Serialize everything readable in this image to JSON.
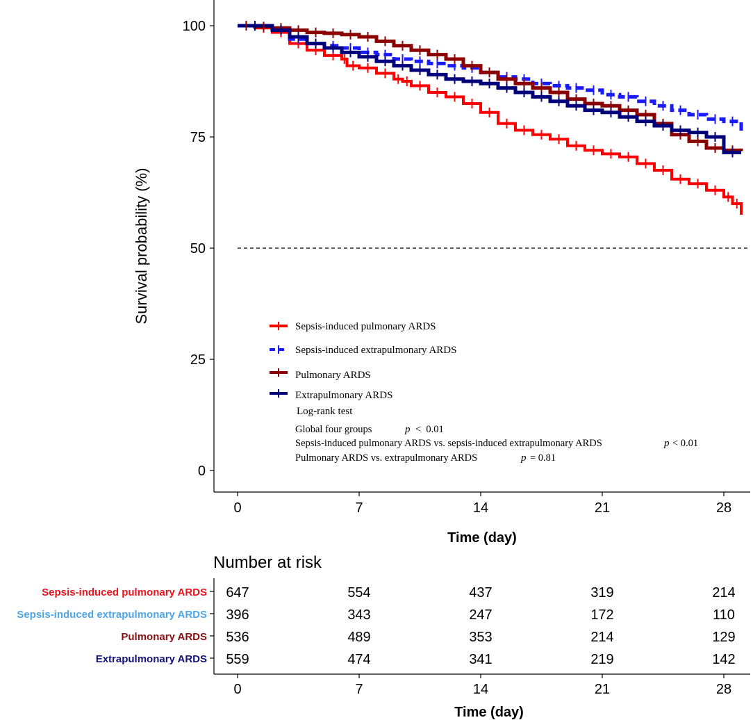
{
  "chart_data": {
    "type": "line",
    "subtype": "kaplan-meier",
    "title": "",
    "xlabel": "Time (day)",
    "ylabel": "Survival probability (%)",
    "xlim": [
      0,
      29
    ],
    "ylim": [
      0,
      100
    ],
    "x_ticks": [
      "0",
      "7",
      "14",
      "21",
      "28"
    ],
    "y_ticks": [
      "0",
      "25",
      "50",
      "75",
      "100"
    ],
    "reference_line": {
      "y": 50,
      "style": "dashed"
    },
    "series": [
      {
        "name": "Sepsis-induced pulmonary ARDS",
        "color": "#ff0000",
        "dash": "solid",
        "steps": [
          [
            0,
            100
          ],
          [
            1,
            99.5
          ],
          [
            2,
            98.5
          ],
          [
            3,
            96
          ],
          [
            4,
            94.5
          ],
          [
            5,
            93.3
          ],
          [
            6,
            92.5
          ],
          [
            6.3,
            91
          ],
          [
            7,
            90.5
          ],
          [
            8,
            89.3
          ],
          [
            9,
            88
          ],
          [
            9.5,
            87.5
          ],
          [
            10,
            86.5
          ],
          [
            11,
            85
          ],
          [
            12,
            84
          ],
          [
            13,
            82.5
          ],
          [
            14,
            80.5
          ],
          [
            15,
            78
          ],
          [
            16,
            76.5
          ],
          [
            17,
            75.5
          ],
          [
            18,
            74.5
          ],
          [
            19,
            73
          ],
          [
            20,
            72
          ],
          [
            21,
            71.2
          ],
          [
            22,
            70.5
          ],
          [
            23,
            69
          ],
          [
            24,
            67.5
          ],
          [
            25,
            65.5
          ],
          [
            26,
            64.5
          ],
          [
            27,
            63
          ],
          [
            28,
            61.5
          ],
          [
            28.5,
            60
          ],
          [
            29,
            57.5
          ]
        ]
      },
      {
        "name": "Sepsis-induced extrapulmonary ARDS",
        "color": "#1a1aff",
        "dash": "dashed",
        "steps": [
          [
            0,
            100
          ],
          [
            2,
            99
          ],
          [
            3,
            97
          ],
          [
            4,
            96
          ],
          [
            5,
            95.5
          ],
          [
            6,
            95
          ],
          [
            7,
            94
          ],
          [
            8,
            93.5
          ],
          [
            9,
            92.5
          ],
          [
            10,
            92
          ],
          [
            11,
            91.5
          ],
          [
            12,
            91
          ],
          [
            13,
            90.5
          ],
          [
            14,
            89.5
          ],
          [
            15,
            88.5
          ],
          [
            16,
            88
          ],
          [
            17,
            87
          ],
          [
            18,
            86.5
          ],
          [
            19,
            86
          ],
          [
            20,
            85.5
          ],
          [
            21,
            84.5
          ],
          [
            22,
            84
          ],
          [
            23,
            83
          ],
          [
            24,
            82
          ],
          [
            25,
            81
          ],
          [
            26,
            80
          ],
          [
            27,
            79
          ],
          [
            28,
            78.5
          ],
          [
            29,
            76
          ]
        ]
      },
      {
        "name": "Pulmonary ARDS",
        "color": "#8b0000",
        "dash": "solid",
        "steps": [
          [
            0,
            100
          ],
          [
            1,
            99.8
          ],
          [
            2,
            99.5
          ],
          [
            3,
            99
          ],
          [
            4,
            98.5
          ],
          [
            5,
            98.3
          ],
          [
            6,
            98
          ],
          [
            7,
            97.5
          ],
          [
            8,
            96.5
          ],
          [
            9,
            95.5
          ],
          [
            10,
            94.5
          ],
          [
            11,
            93.5
          ],
          [
            12,
            92.5
          ],
          [
            13,
            91
          ],
          [
            14,
            89.5
          ],
          [
            15,
            88
          ],
          [
            16,
            87
          ],
          [
            17,
            86
          ],
          [
            18,
            85
          ],
          [
            19,
            83.5
          ],
          [
            20,
            82.5
          ],
          [
            21,
            82
          ],
          [
            22,
            81
          ],
          [
            23,
            80
          ],
          [
            24,
            78
          ],
          [
            25,
            75.5
          ],
          [
            26,
            74
          ],
          [
            27,
            72.5
          ],
          [
            28,
            72
          ],
          [
            29,
            71.8
          ]
        ]
      },
      {
        "name": "Extrapulmonary ARDS",
        "color": "#00007a",
        "dash": "solid",
        "steps": [
          [
            0,
            100
          ],
          [
            2,
            99
          ],
          [
            3,
            97.5
          ],
          [
            4,
            96
          ],
          [
            5,
            95
          ],
          [
            6,
            94
          ],
          [
            7,
            93
          ],
          [
            8,
            92
          ],
          [
            9,
            91
          ],
          [
            10,
            90
          ],
          [
            11,
            89
          ],
          [
            12,
            88
          ],
          [
            13,
            87.5
          ],
          [
            14,
            87
          ],
          [
            15,
            86
          ],
          [
            16,
            85
          ],
          [
            17,
            84
          ],
          [
            18,
            83
          ],
          [
            19,
            82
          ],
          [
            20,
            81
          ],
          [
            21,
            80.5
          ],
          [
            22,
            79.5
          ],
          [
            23,
            78.5
          ],
          [
            24,
            77.5
          ],
          [
            25,
            76.5
          ],
          [
            26,
            76
          ],
          [
            27,
            75
          ],
          [
            28,
            71.5
          ],
          [
            29,
            71.5
          ]
        ]
      }
    ],
    "legend_position": "bottom-left",
    "annotations": {
      "test_title": "Log-rank test",
      "rows": [
        {
          "label": "Global four groups",
          "p": "p",
          "value": "<  0.01"
        },
        {
          "label": "Sepsis-induced pulmonary ARDS vs. sepsis-induced extrapulmonary ARDS",
          "p": "p",
          "value": "< 0.01"
        },
        {
          "label": "Pulmonary ARDS vs. extrapulmonary ARDS",
          "p": "p",
          "value": "= 0.81"
        }
      ]
    },
    "risk_table": {
      "title": "Number at risk",
      "xlabel": "Time (day)",
      "times": [
        "0",
        "7",
        "14",
        "21",
        "28"
      ],
      "rows": [
        {
          "label": "Sepsis-induced pulmonary ARDS",
          "color": "#e8141c",
          "values": [
            "647",
            "554",
            "437",
            "319",
            "214"
          ]
        },
        {
          "label": "Sepsis-induced extrapulmonary ARDS",
          "color": "#4da6e8",
          "values": [
            "396",
            "343",
            "247",
            "172",
            "110"
          ]
        },
        {
          "label": "Pulmonary ARDS",
          "color": "#8b1010",
          "values": [
            "536",
            "489",
            "353",
            "214",
            "129"
          ]
        },
        {
          "label": "Extrapulmonary ARDS",
          "color": "#12127a",
          "values": [
            "559",
            "474",
            "341",
            "219",
            "142"
          ]
        }
      ]
    }
  }
}
